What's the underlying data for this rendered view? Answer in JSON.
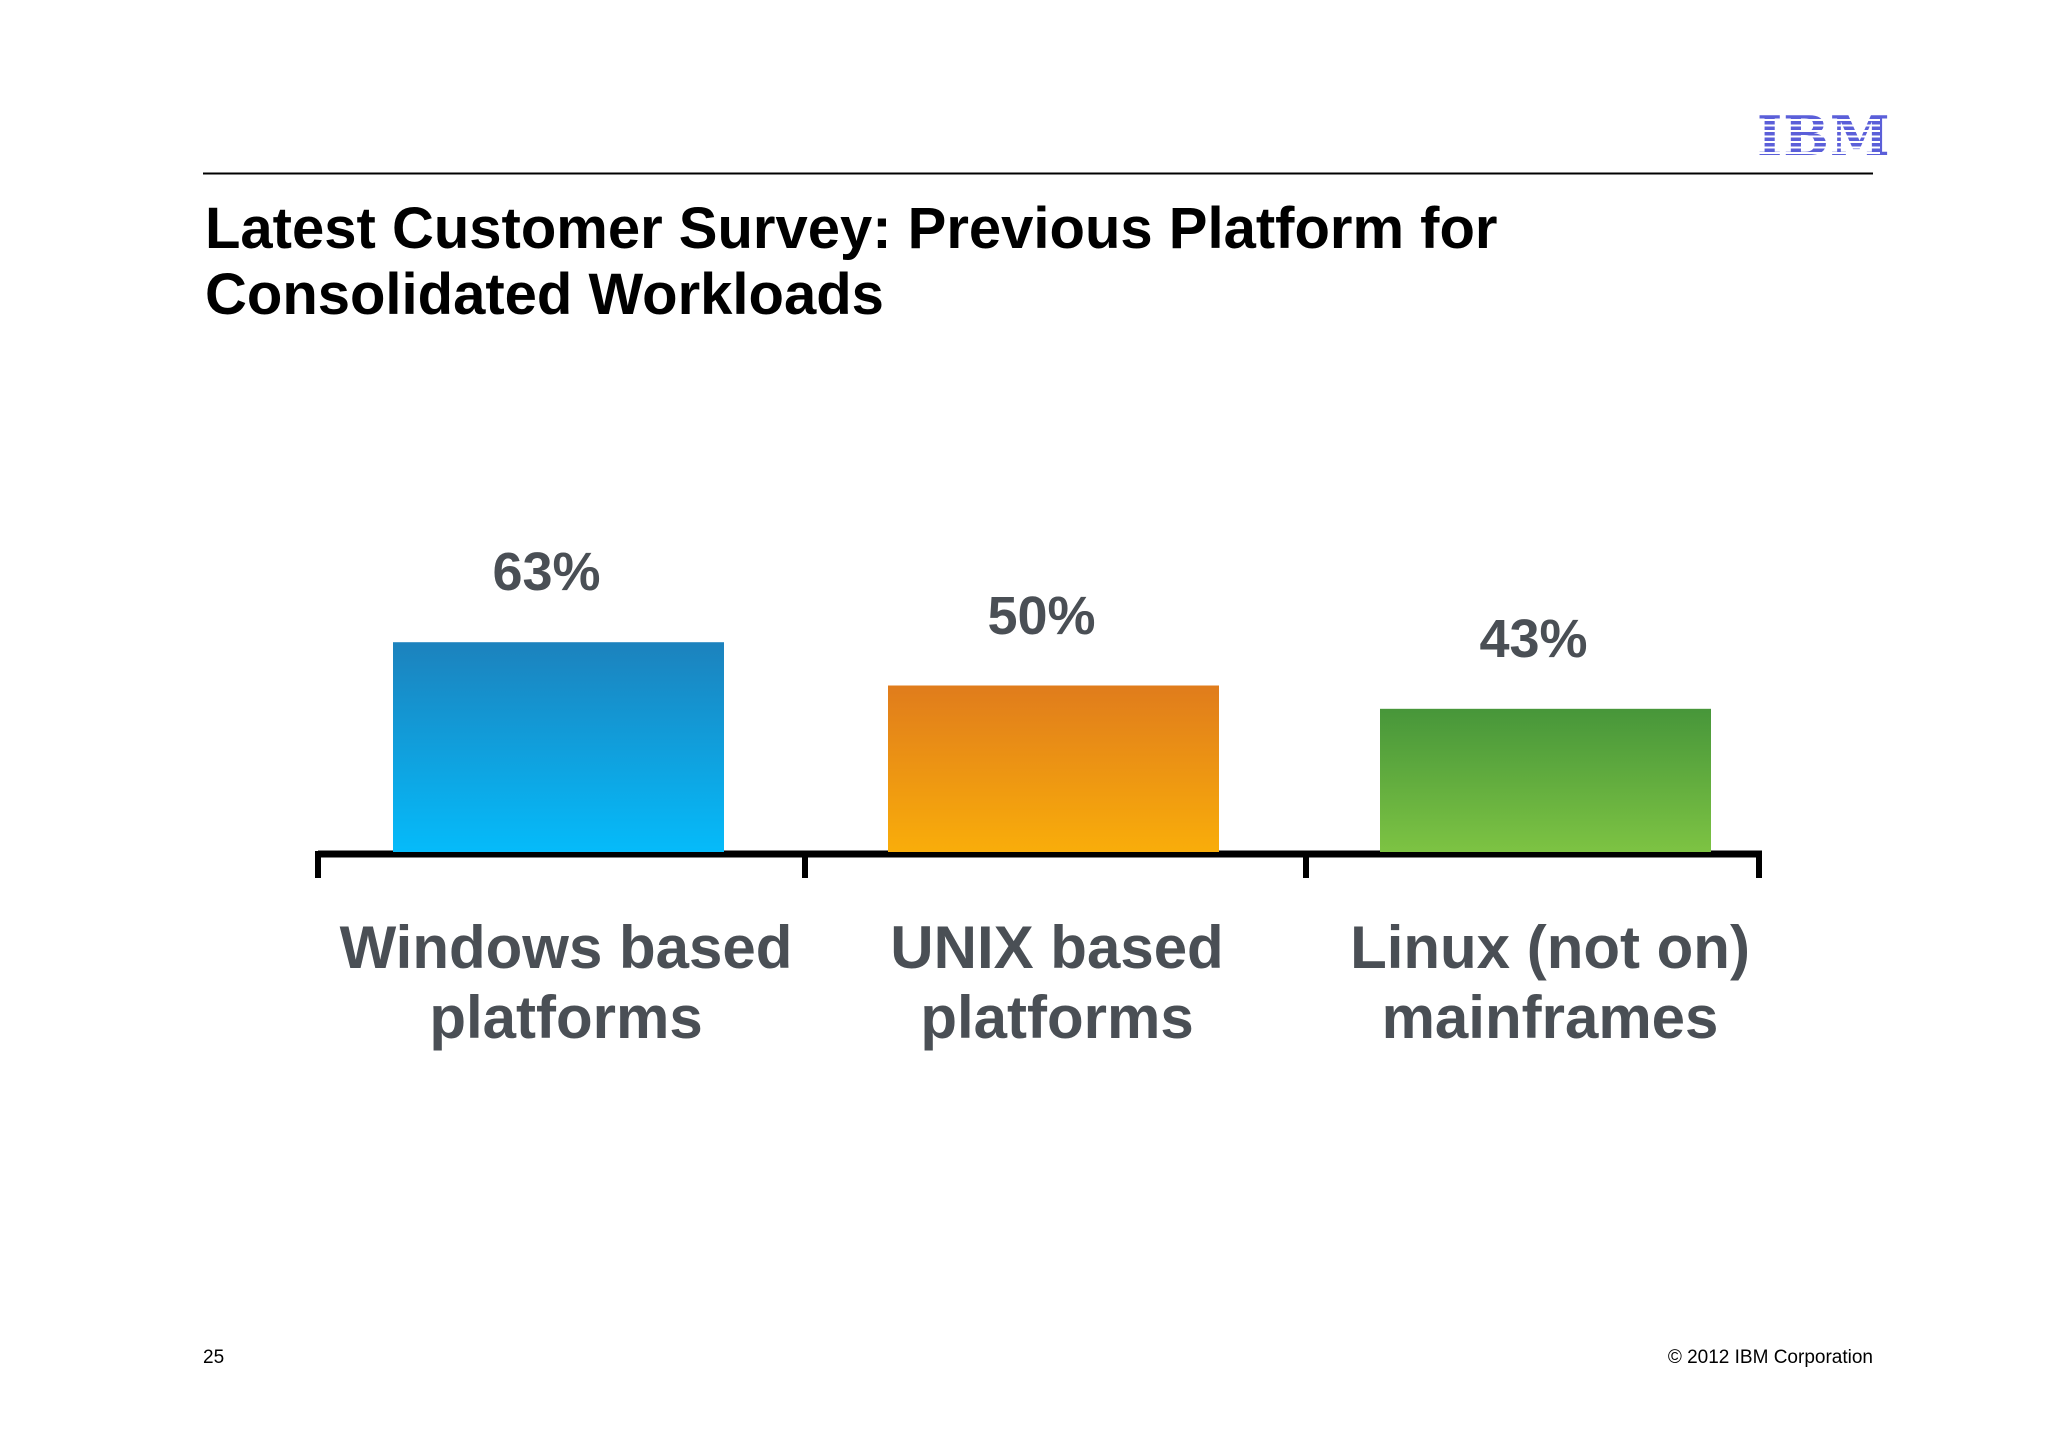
{
  "logo": "IBM",
  "chart_data": {
    "type": "bar",
    "title": "Latest Customer Survey: Previous Platform for Consolidated Workloads",
    "categories": [
      "Windows based platforms",
      "UNIX based platforms",
      "Linux (not on) mainframes"
    ],
    "values": [
      63,
      50,
      43
    ],
    "value_labels": [
      "63%",
      "50%",
      "43%"
    ],
    "colors": [
      [
        "#1c82bd",
        "#05bbfa"
      ],
      [
        "#e07c1c",
        "#f9ad0a"
      ],
      [
        "#47963a",
        "#7dc343"
      ]
    ]
  },
  "page_number": "25",
  "copyright": "© 2012 IBM Corporation"
}
